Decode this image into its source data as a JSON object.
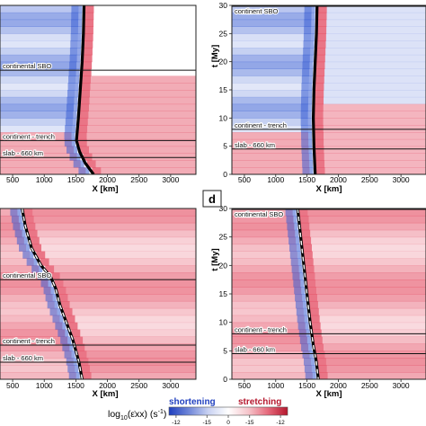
{
  "figure": {
    "panel_letter": "d",
    "colorbar": {
      "label": "log10(ε̇xx) (s-1)",
      "label_main": "log",
      "label_sub": "10",
      "label_rest": "(ε̇xx) (s",
      "label_exp": "-1",
      "label_close": ")",
      "shortening_label": "shortening",
      "stretching_label": "stretching",
      "ticks": [
        "-12",
        "-15",
        "0",
        "-15",
        "-12"
      ],
      "colors": [
        "#1f3fbf",
        "#6f86d8",
        "#c9d2f2",
        "#ffffff",
        "#f6c6cc",
        "#e66a7c",
        "#b5172d"
      ]
    }
  },
  "chart_data": [
    {
      "type": "heatmap",
      "position": "top-left",
      "xlabel": "X [km]",
      "ylabel": "",
      "x_ticks": [
        "500",
        "1000",
        "1500",
        "2000",
        "2500",
        "3000"
      ],
      "y_ticks": [],
      "xlim": [
        300,
        3400
      ],
      "annotations": [
        {
          "text": "continental SBO",
          "t": 18.5
        },
        {
          "text": "continent - trench",
          "t": 6
        },
        {
          "text": "slab - 660 km",
          "t": 3
        }
      ],
      "trench_path": {
        "x": [
          1630,
          1620,
          1600,
          1570,
          1540,
          1510,
          1560,
          1650,
          1780
        ],
        "t": [
          30,
          25,
          20,
          15,
          10,
          6,
          4,
          2,
          0
        ]
      },
      "colors": {
        "background": "#ffffff",
        "shortening": "#3b5fd3",
        "stretching": "#e3475e"
      }
    },
    {
      "type": "heatmap",
      "position": "top-right",
      "xlabel": "X [km]",
      "ylabel": "t [My]",
      "x_ticks": [
        "500",
        "1000",
        "1500",
        "2000",
        "2500",
        "3000"
      ],
      "y_ticks": [
        "0",
        "5",
        "10",
        "15",
        "20",
        "25",
        "30"
      ],
      "xlim": [
        300,
        3400
      ],
      "ylim": [
        0,
        30
      ],
      "annotations": [
        {
          "text": "continent SBO",
          "t": 30
        },
        {
          "text": "continent - trench",
          "t": 8
        },
        {
          "text": "slab - 660 km",
          "t": 4.5
        }
      ],
      "trench_path": {
        "x": [
          1660,
          1650,
          1630,
          1610,
          1600,
          1610,
          1630
        ],
        "t": [
          30,
          25,
          20,
          15,
          10,
          5,
          0
        ]
      },
      "colors": {
        "background": "#ffffff",
        "shortening": "#3b5fd3",
        "stretching": "#e3475e"
      }
    },
    {
      "type": "heatmap",
      "position": "bottom-left",
      "xlabel": "X [km]",
      "ylabel": "",
      "x_ticks": [
        "500",
        "1000",
        "1500",
        "2000",
        "2500",
        "3000"
      ],
      "y_ticks": [],
      "xlim": [
        300,
        3400
      ],
      "annotations": [
        {
          "text": "continental SBO",
          "t": 17.5
        },
        {
          "text": "continent - trench",
          "t": 6
        },
        {
          "text": "slab - 660 km",
          "t": 3
        }
      ],
      "trench_path": {
        "x": [
          650,
          700,
          800,
          950,
          1100,
          1180,
          1250,
          1350,
          1450,
          1550,
          1600
        ],
        "t": [
          30,
          27,
          23,
          20,
          18,
          16,
          13,
          10,
          7,
          3,
          0
        ]
      },
      "colors": {
        "background": "#ffffff",
        "shortening": "#3b5fd3",
        "stretching": "#e3475e"
      }
    },
    {
      "type": "heatmap",
      "position": "bottom-right",
      "xlabel": "X [km]",
      "ylabel": "t [My]",
      "x_ticks": [
        "500",
        "1000",
        "1500",
        "2000",
        "2500",
        "3000"
      ],
      "y_ticks": [
        "0",
        "5",
        "10",
        "15",
        "20",
        "25",
        "30"
      ],
      "xlim": [
        300,
        3400
      ],
      "ylim": [
        0,
        30
      ],
      "annotations": [
        {
          "text": "continental SBO",
          "t": 30
        },
        {
          "text": "continent - trench",
          "t": 8
        },
        {
          "text": "slab - 660 km",
          "t": 4.5
        }
      ],
      "trench_path": {
        "x": [
          1350,
          1400,
          1450,
          1500,
          1550,
          1600,
          1650,
          1680
        ],
        "t": [
          30,
          25,
          20,
          15,
          10,
          6,
          3,
          0
        ]
      },
      "colors": {
        "background": "#ffffff",
        "shortening": "#3b5fd3",
        "stretching": "#e3475e"
      }
    }
  ]
}
